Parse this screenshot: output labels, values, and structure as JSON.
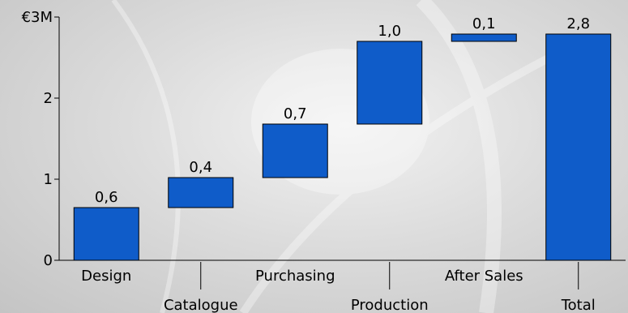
{
  "chart_data": {
    "type": "bar",
    "subtype": "waterfall",
    "categories": [
      "Design",
      "Catalogue",
      "Purchasing",
      "Production",
      "After Sales",
      "Total"
    ],
    "values": [
      0.6,
      0.4,
      0.7,
      1.0,
      0.1,
      2.8
    ],
    "value_labels": [
      "0,6",
      "0,4",
      "0,7",
      "1,0",
      "0,1",
      "2,8"
    ],
    "bar_ranges": [
      [
        0,
        0.65
      ],
      [
        0.65,
        1.02
      ],
      [
        1.02,
        1.68
      ],
      [
        1.68,
        2.7
      ],
      [
        2.7,
        2.79
      ],
      [
        0,
        2.79
      ]
    ],
    "y_ticks": [
      {
        "value": 0,
        "label": "0"
      },
      {
        "value": 1,
        "label": "1"
      },
      {
        "value": 2,
        "label": "2"
      },
      {
        "value": 3,
        "label": "€3M"
      }
    ],
    "ylim": [
      0,
      3
    ],
    "title": "",
    "xlabel": "",
    "ylabel": "",
    "grid": false,
    "legend": "none",
    "bar_color": "#0f5cc9",
    "bar_edge_color": "#000000"
  }
}
